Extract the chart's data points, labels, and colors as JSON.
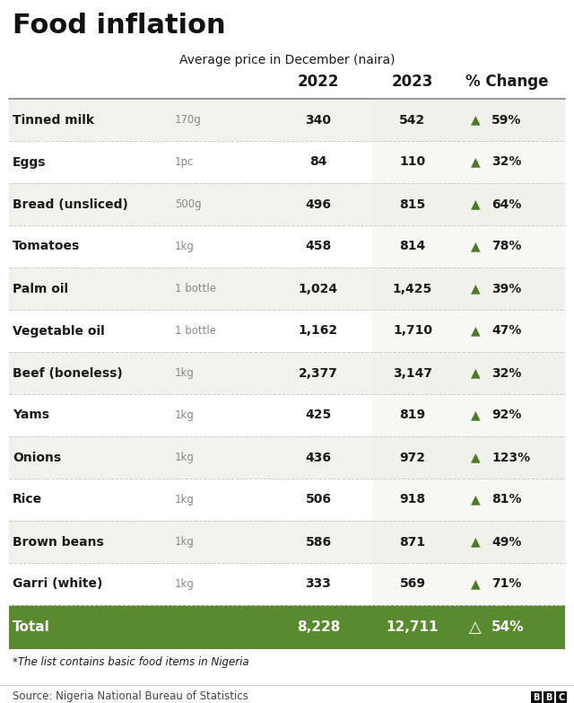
{
  "title": "Food inflation",
  "subtitle": "Average price in December (naira)",
  "rows": [
    {
      "item": "Tinned milk",
      "unit": "170g",
      "price2022": "340",
      "price2023": "542",
      "change": "59%"
    },
    {
      "item": "Eggs",
      "unit": "1pc",
      "price2022": "84",
      "price2023": "110",
      "change": "32%"
    },
    {
      "item": "Bread (unsliced)",
      "unit": "500g",
      "price2022": "496",
      "price2023": "815",
      "change": "64%"
    },
    {
      "item": "Tomatoes",
      "unit": "1kg",
      "price2022": "458",
      "price2023": "814",
      "change": "78%"
    },
    {
      "item": "Palm oil",
      "unit": "1 bottle",
      "price2022": "1,024",
      "price2023": "1,425",
      "change": "39%"
    },
    {
      "item": "Vegetable oil",
      "unit": "1 bottle",
      "price2022": "1,162",
      "price2023": "1,710",
      "change": "47%"
    },
    {
      "item": "Beef (boneless)",
      "unit": "1kg",
      "price2022": "2,377",
      "price2023": "3,147",
      "change": "32%"
    },
    {
      "item": "Yams",
      "unit": "1kg",
      "price2022": "425",
      "price2023": "819",
      "change": "92%"
    },
    {
      "item": "Onions",
      "unit": "1kg",
      "price2022": "436",
      "price2023": "972",
      "change": "123%"
    },
    {
      "item": "Rice",
      "unit": "1kg",
      "price2022": "506",
      "price2023": "918",
      "change": "81%"
    },
    {
      "item": "Brown beans",
      "unit": "1kg",
      "price2022": "586",
      "price2023": "871",
      "change": "49%"
    },
    {
      "item": "Garri (white)",
      "unit": "1kg",
      "price2022": "333",
      "price2023": "569",
      "change": "71%"
    }
  ],
  "total": {
    "item": "Total",
    "price2022": "8,228",
    "price2023": "12,711",
    "change": "54%"
  },
  "footnote": "*The list contains basic food items in Nigeria",
  "source": "Source: Nigeria National Bureau of Statistics",
  "bg_color": "#ffffff",
  "row_bg_even": "#f2f2ed",
  "row_bg_odd": "#ffffff",
  "col_bg_2023": "#eef0e8",
  "total_bg": "#5a8a2f",
  "total_text": "#ffffff",
  "arrow_color": "#4a7a25",
  "text_color": "#1a1a1a",
  "unit_color": "#888888",
  "divider_color": "#cccccc",
  "header_divider_color": "#888888",
  "title_color": "#111111"
}
